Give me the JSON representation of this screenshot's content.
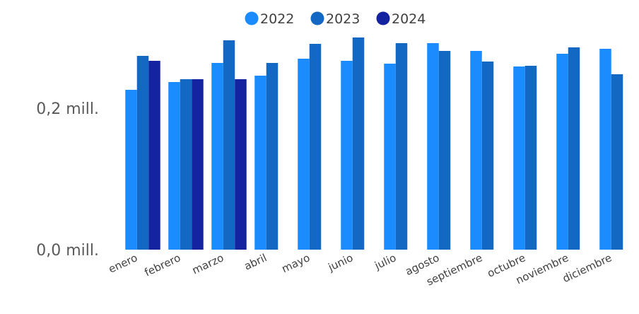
{
  "chart_data": {
    "type": "bar",
    "categories": [
      "enero",
      "febrero",
      "marzo",
      "abril",
      "mayo",
      "junio",
      "julio",
      "agosto",
      "septiembre",
      "octubre",
      "noviembre",
      "diciembre"
    ],
    "series": [
      {
        "name": "2022",
        "color": "#1a8cff",
        "values": [
          0.226,
          0.237,
          0.264,
          0.246,
          0.27,
          0.267,
          0.263,
          0.292,
          0.281,
          0.259,
          0.277,
          0.284
        ]
      },
      {
        "name": "2023",
        "color": "#1268c2",
        "values": [
          0.274,
          0.241,
          0.296,
          0.264,
          0.291,
          0.3,
          0.292,
          0.281,
          0.266,
          0.26,
          0.286,
          0.248
        ]
      },
      {
        "name": "2024",
        "color": "#1623a1",
        "values": [
          0.267,
          0.241,
          0.241,
          null,
          null,
          null,
          null,
          null,
          null,
          null,
          null,
          null
        ]
      }
    ],
    "yticks": [
      {
        "value": 0.0,
        "label": "0,0 mill."
      },
      {
        "value": 0.2,
        "label": "0,2 mill."
      }
    ],
    "ylim": [
      0,
      0.3
    ],
    "grid": false,
    "legend_position": "top-center",
    "title": "",
    "xlabel": "",
    "ylabel": ""
  }
}
